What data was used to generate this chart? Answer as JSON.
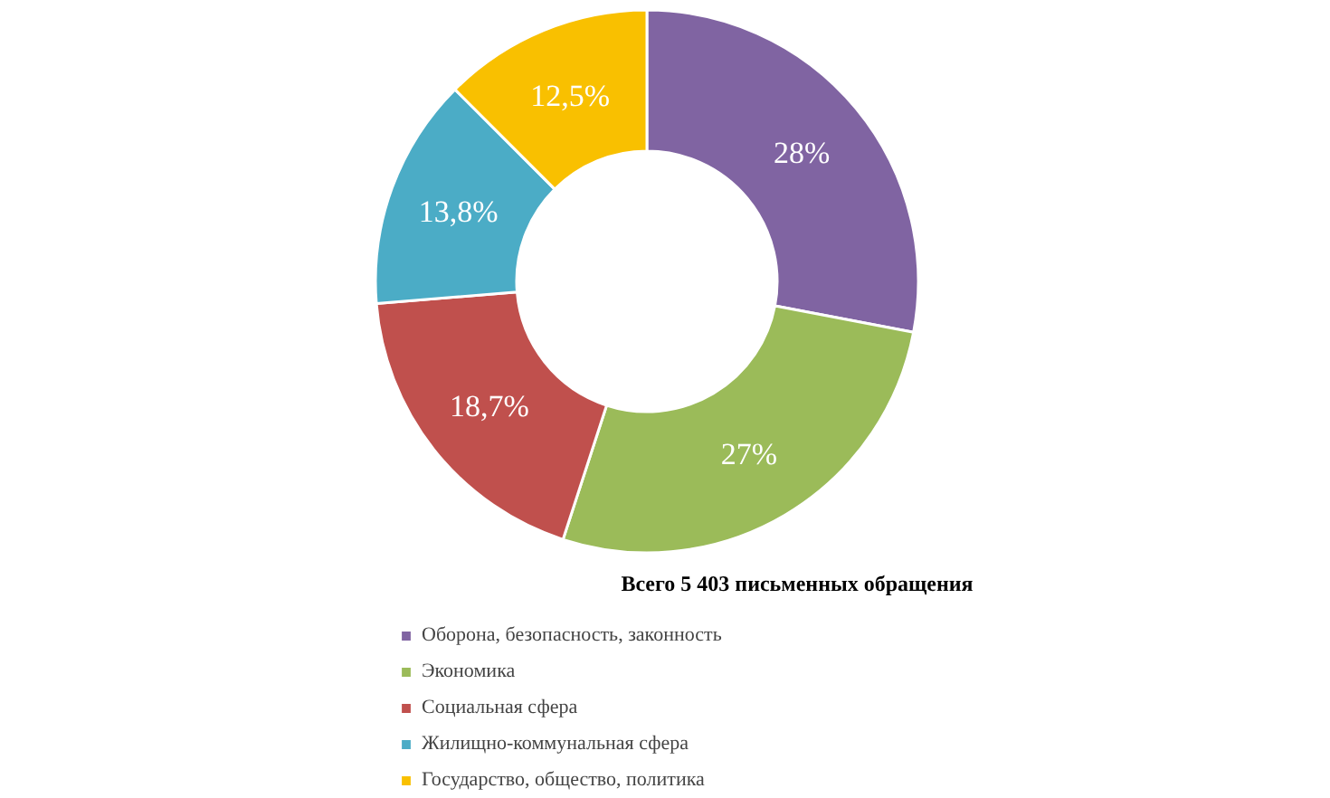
{
  "chart_data": {
    "type": "donut",
    "title": "Всего 5 403 письменных обращения",
    "categories": [
      "Оборона, безопасность, законность",
      "Экономика",
      "Социальная сфера",
      "Жилищно-коммунальная сфера",
      "Государство, общество, политика"
    ],
    "values": [
      28,
      27,
      18.7,
      13.8,
      12.5
    ],
    "colors": [
      "#8064a2",
      "#9bbb59",
      "#c0504d",
      "#4bacc6",
      "#f9c000"
    ],
    "value_labels": [
      "28%",
      "27%",
      "18,7%",
      "13,8%",
      "12,5%"
    ],
    "legend": "bottom"
  }
}
